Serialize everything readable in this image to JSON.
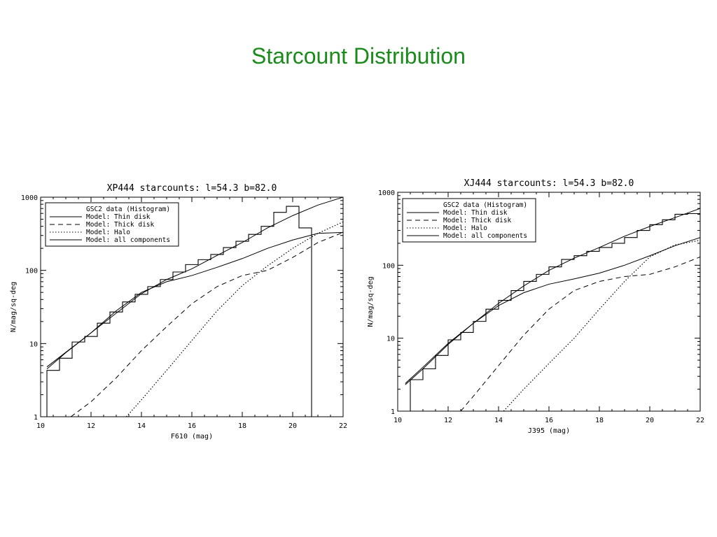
{
  "slide": {
    "title": "Starcount Distribution"
  },
  "chart_data": [
    {
      "type": "line",
      "title": "XP444 starcounts: l=54.3 b=82.0",
      "xlabel": "F610 (mag)",
      "ylabel": "N/mag/sq-deg",
      "xlim": [
        10,
        22
      ],
      "ylim": [
        1,
        1000
      ],
      "yscale": "log",
      "xticks": [
        10,
        12,
        14,
        16,
        18,
        20,
        22
      ],
      "yticks": [
        {
          "v": 1,
          "label": "1"
        },
        {
          "v": 10,
          "label": "10"
        },
        {
          "v": 100,
          "label": "100"
        },
        {
          "v": 1000,
          "label": "1000"
        }
      ],
      "legend_position": "top-left",
      "legend": [
        {
          "label": "GSC2 data (Histogram)",
          "dash": "none"
        },
        {
          "label": "Model: Thin disk",
          "dash": "solid"
        },
        {
          "label": "Model: Thick disk",
          "dash": "dashed"
        },
        {
          "label": "Model: Halo",
          "dash": "dotted"
        },
        {
          "label": "Model: all components",
          "dash": "solid"
        }
      ],
      "histogram": {
        "bin_width": 0.5,
        "edges_start": 10.25,
        "values": [
          4.3,
          6.3,
          10.5,
          12.5,
          19,
          27,
          37,
          47,
          60,
          75,
          95,
          120,
          140,
          165,
          205,
          250,
          310,
          400,
          620,
          750,
          380,
          1
        ]
      },
      "series": [
        {
          "name": "Model: Thin disk",
          "dash": "solid",
          "x": [
            10.25,
            11,
            12,
            13,
            14,
            15,
            16,
            17,
            18,
            19,
            20,
            21,
            22
          ],
          "y": [
            4.5,
            7.5,
            14,
            26,
            48,
            75,
            105,
            160,
            240,
            380,
            560,
            780,
            1000
          ]
        },
        {
          "name": "Model: Thick disk",
          "dash": "dashed",
          "x": [
            11.2,
            12,
            13,
            14,
            15,
            16,
            17,
            18,
            19,
            20,
            21,
            22
          ],
          "y": [
            1,
            1.6,
            3.4,
            8,
            17,
            35,
            60,
            85,
            100,
            150,
            240,
            330
          ]
        },
        {
          "name": "Model: Halo",
          "dash": "dotted",
          "x": [
            13.4,
            14,
            15,
            16,
            17,
            18,
            19,
            20,
            21,
            22
          ],
          "y": [
            1,
            1.7,
            4.3,
            11,
            28,
            62,
            115,
            200,
            320,
            460
          ]
        },
        {
          "name": "Model: all components",
          "dash": "solid",
          "x": [
            10.25,
            11,
            12,
            13,
            14,
            15,
            16,
            17,
            18,
            19,
            20,
            21,
            22
          ],
          "y": [
            4.8,
            7.6,
            14,
            28,
            50,
            70,
            85,
            110,
            145,
            200,
            260,
            320,
            330
          ]
        }
      ]
    },
    {
      "type": "line",
      "title": "XJ444 starcounts: l=54.3 b=82.0",
      "xlabel": "J395 (mag)",
      "ylabel": "N/mag/sq-deg",
      "xlim": [
        10,
        22
      ],
      "ylim": [
        1,
        1000
      ],
      "yscale": "log",
      "xticks": [
        10,
        12,
        14,
        16,
        18,
        20,
        22
      ],
      "yticks": [
        {
          "v": 1,
          "label": "1"
        },
        {
          "v": 10,
          "label": "10"
        },
        {
          "v": 100,
          "label": "100"
        },
        {
          "v": 1000,
          "label": "1000"
        }
      ],
      "legend_position": "top-left",
      "legend": [
        {
          "label": "GSC2 data (Histogram)",
          "dash": "none"
        },
        {
          "label": "Model: Thin disk",
          "dash": "solid"
        },
        {
          "label": "Model: Thick disk",
          "dash": "dashed"
        },
        {
          "label": "Model: Halo",
          "dash": "dotted"
        },
        {
          "label": "Model: all components",
          "dash": "solid"
        }
      ],
      "histogram": {
        "bin_width": 0.5,
        "edges_start": 10.5,
        "values": [
          2.7,
          3.8,
          5.8,
          9.5,
          12,
          17,
          25,
          33,
          45,
          60,
          75,
          95,
          120,
          135,
          155,
          175,
          200,
          240,
          300,
          360,
          420,
          500,
          510
        ]
      },
      "series": [
        {
          "name": "Model: Thin disk",
          "dash": "solid",
          "x": [
            10.3,
            11,
            12,
            13,
            14,
            15,
            16,
            17,
            18,
            19,
            20,
            21,
            22
          ],
          "y": [
            2.3,
            3.8,
            8.2,
            16,
            30,
            52,
            85,
            125,
            175,
            250,
            340,
            450,
            600
          ]
        },
        {
          "name": "Model: Thick disk",
          "dash": "dashed",
          "x": [
            12.5,
            13,
            14,
            15,
            16,
            17,
            18,
            19,
            20,
            21,
            22
          ],
          "y": [
            1,
            1.6,
            4.2,
            11,
            25,
            45,
            60,
            70,
            75,
            95,
            130
          ]
        },
        {
          "name": "Model: Halo",
          "dash": "dotted",
          "x": [
            14.2,
            15,
            16,
            17,
            18,
            19,
            20,
            21,
            22
          ],
          "y": [
            1,
            2,
            4.5,
            10,
            25,
            60,
            130,
            190,
            220
          ]
        },
        {
          "name": "Model: all components",
          "dash": "solid",
          "x": [
            10.3,
            11,
            12,
            13,
            14,
            15,
            16,
            17,
            18,
            19,
            20,
            21,
            22
          ],
          "y": [
            2.4,
            4,
            8.5,
            16,
            28,
            42,
            55,
            65,
            78,
            100,
            135,
            185,
            240
          ]
        }
      ]
    }
  ]
}
